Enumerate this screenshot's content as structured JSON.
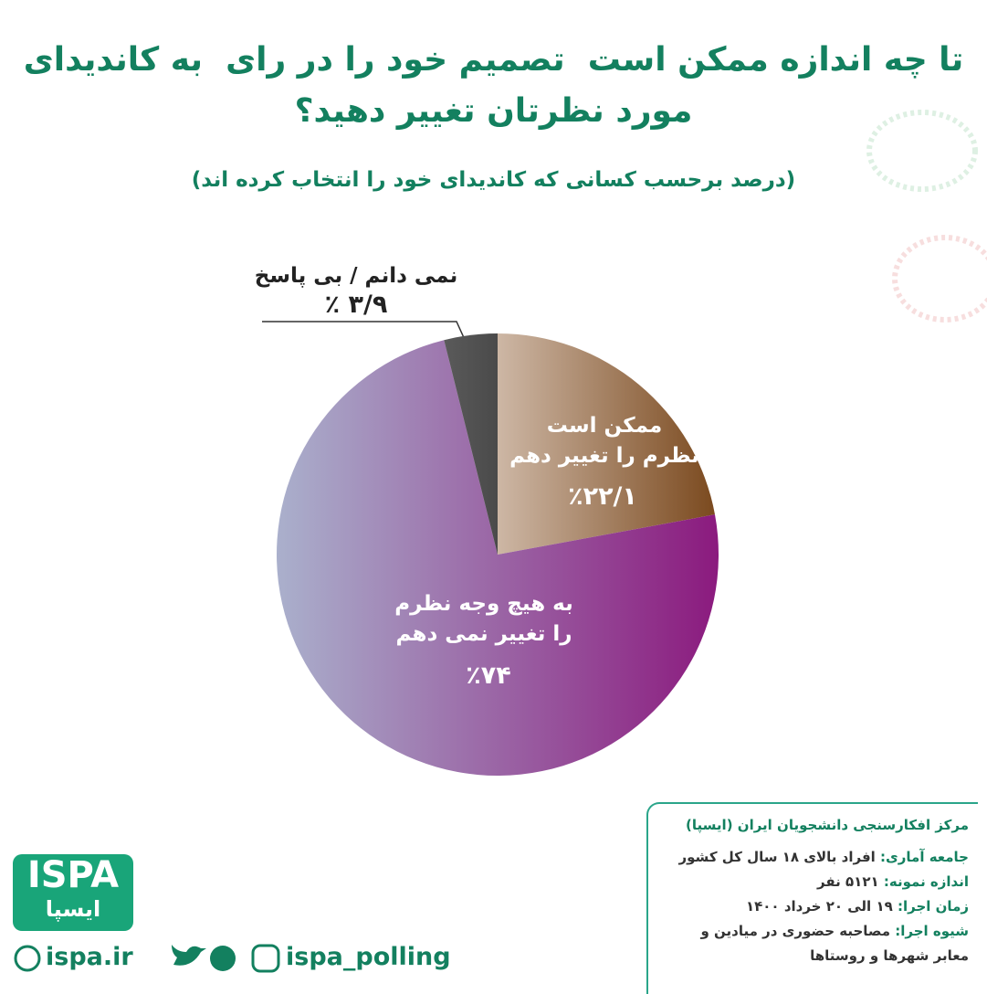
{
  "chart_data": {
    "type": "pie",
    "title": "تا چه اندازه ممکن است  تصمیم خود را در رای  به کاندیدای\nمورد نظرتان تغییر دهید؟",
    "subtitle": "(درصد برحسب کسانی که کاندیدای خود را انتخاب کرده اند)",
    "categories": [
      "ممکن است\nنظرم را تغییر دهم",
      "به هیچ وجه نظرم\nرا تغییر نمی دهم",
      "نمی دانم / بی پاسخ"
    ],
    "values": [
      22.1,
      74,
      3.9
    ],
    "value_labels": [
      "٪۲۲/۱",
      "٪۷۴",
      "٪ ۳/۹"
    ],
    "colors": [
      "#7b4a1f",
      "#8b1a7e",
      "#4a4a4a"
    ],
    "gradient_from": [
      "#cdb7a5",
      "#aab0cc",
      "#5a5a5a"
    ]
  },
  "footer": {
    "org": "مرکز افکارسنجی دانشجویان ایران (ایسپا)",
    "details": [
      {
        "label": "جامعه آماری:",
        "value": "افراد بالای ۱۸ سال کل کشور"
      },
      {
        "label": "اندازه نمونه:",
        "value": "۵۱۲۱ نفر"
      },
      {
        "label": "زمان اجرا:",
        "value": "۱۹ الی ۲۰ خرداد ۱۴۰۰"
      },
      {
        "label": "شیوه اجرا:",
        "value": "مصاحبه حضوری در میادین و\nمعابر شهرها و روستاها"
      }
    ]
  },
  "logo": {
    "latin": "ISPA",
    "persian": "ایسپا"
  },
  "links": {
    "website": "ispa.ir",
    "handle": "ispa_polling"
  }
}
